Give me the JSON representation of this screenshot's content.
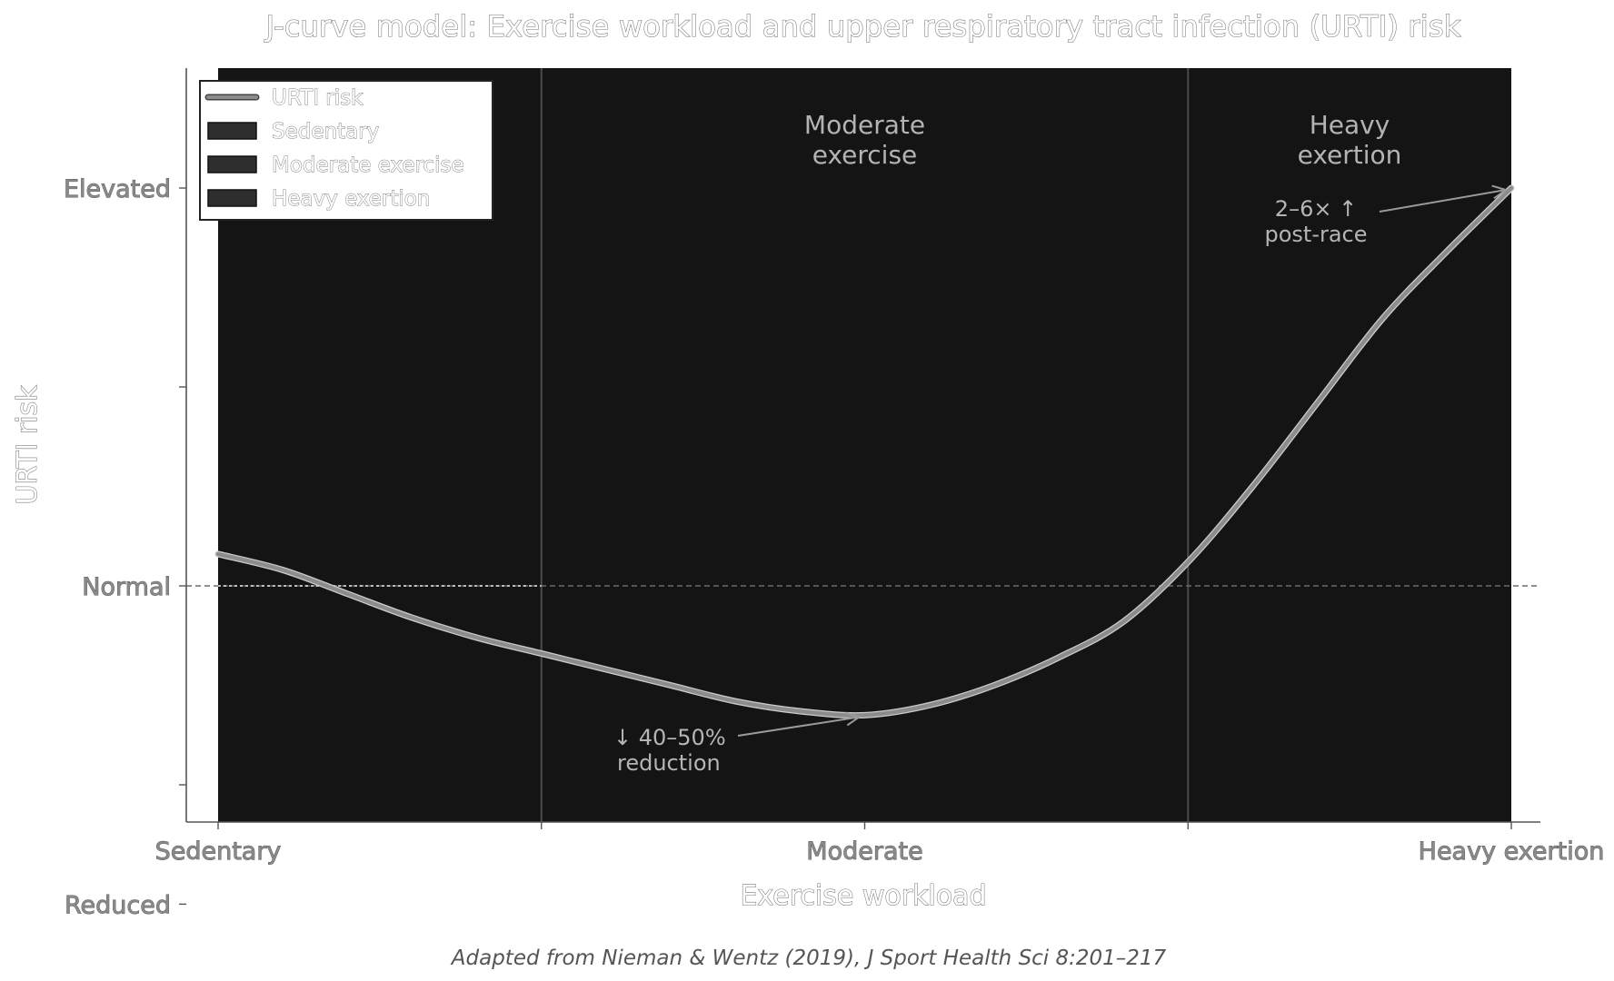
{
  "chart_data": {
    "type": "line",
    "title": "J-curve model: Exercise workload and upper respiratory tract infection (URTI) risk",
    "xlabel": "Exercise workload",
    "ylabel": "URTI risk",
    "x_ticks": [
      {
        "value": 0,
        "label": "Sedentary"
      },
      {
        "value": 1,
        "label": "Moderate"
      },
      {
        "value": 2,
        "label": "Heavy exertion"
      }
    ],
    "x_minor_ticks": [
      0.5,
      1.5
    ],
    "xlim": [
      -0.05,
      2.05
    ],
    "y_ticks": [
      {
        "value": 0.2,
        "label": "Reduced"
      },
      {
        "value": 0.5,
        "label": ""
      },
      {
        "value": 1.0,
        "label": "Normal"
      },
      {
        "value": 1.5,
        "label": ""
      },
      {
        "value": 2.0,
        "label": "Elevated"
      }
    ],
    "ylim": [
      0.15,
      2.3
    ],
    "reference_line": {
      "y": 1.0,
      "style": "dashed"
    },
    "regions": [
      {
        "name": "Sedentary",
        "x0": 0,
        "x1": 0.5,
        "label": "Sedentary"
      },
      {
        "name": "Moderate exercise",
        "x0": 0.5,
        "x1": 1.5,
        "label": "Moderate\nexercise"
      },
      {
        "name": "Heavy exertion",
        "x0": 1.5,
        "x1": 2.0,
        "label": "Heavy\nexertion"
      }
    ],
    "series": [
      {
        "name": "URTI risk",
        "color": "#8c8c8c",
        "points": [
          [
            0.0,
            1.08
          ],
          [
            0.1,
            1.04
          ],
          [
            0.2,
            0.98
          ],
          [
            0.3,
            0.92
          ],
          [
            0.4,
            0.87
          ],
          [
            0.5,
            0.83
          ],
          [
            0.6,
            0.79
          ],
          [
            0.7,
            0.75
          ],
          [
            0.8,
            0.71
          ],
          [
            0.9,
            0.685
          ],
          [
            1.0,
            0.675
          ],
          [
            1.1,
            0.7
          ],
          [
            1.2,
            0.75
          ],
          [
            1.3,
            0.82
          ],
          [
            1.4,
            0.91
          ],
          [
            1.5,
            1.06
          ],
          [
            1.6,
            1.25
          ],
          [
            1.7,
            1.46
          ],
          [
            1.8,
            1.67
          ],
          [
            1.9,
            1.84
          ],
          [
            2.0,
            2.0
          ]
        ]
      }
    ],
    "annotations": [
      {
        "text": "↓ 40–50%\nreduction",
        "point": [
          1.0,
          0.675
        ]
      },
      {
        "text": "2–6× ↑\npost-race",
        "point": [
          2.0,
          2.0
        ]
      }
    ],
    "legend": {
      "position": "top-left",
      "entries": [
        {
          "label": "URTI risk",
          "kind": "line",
          "color": "#8c8c8c"
        },
        {
          "label": "Sedentary",
          "kind": "patch",
          "color": "#2e2e2e"
        },
        {
          "label": "Moderate exercise",
          "kind": "patch",
          "color": "#2e2e2e"
        },
        {
          "label": "Heavy exertion",
          "kind": "patch",
          "color": "#2e2e2e"
        }
      ]
    },
    "source": "Adapted from Nieman & Wentz (2019), J Sport Health Sci 8:201–217",
    "grid": false,
    "colors": {
      "plot_background": "#141414",
      "curve": "#8c8c8c",
      "region_divider": "#4a4a4a"
    }
  }
}
